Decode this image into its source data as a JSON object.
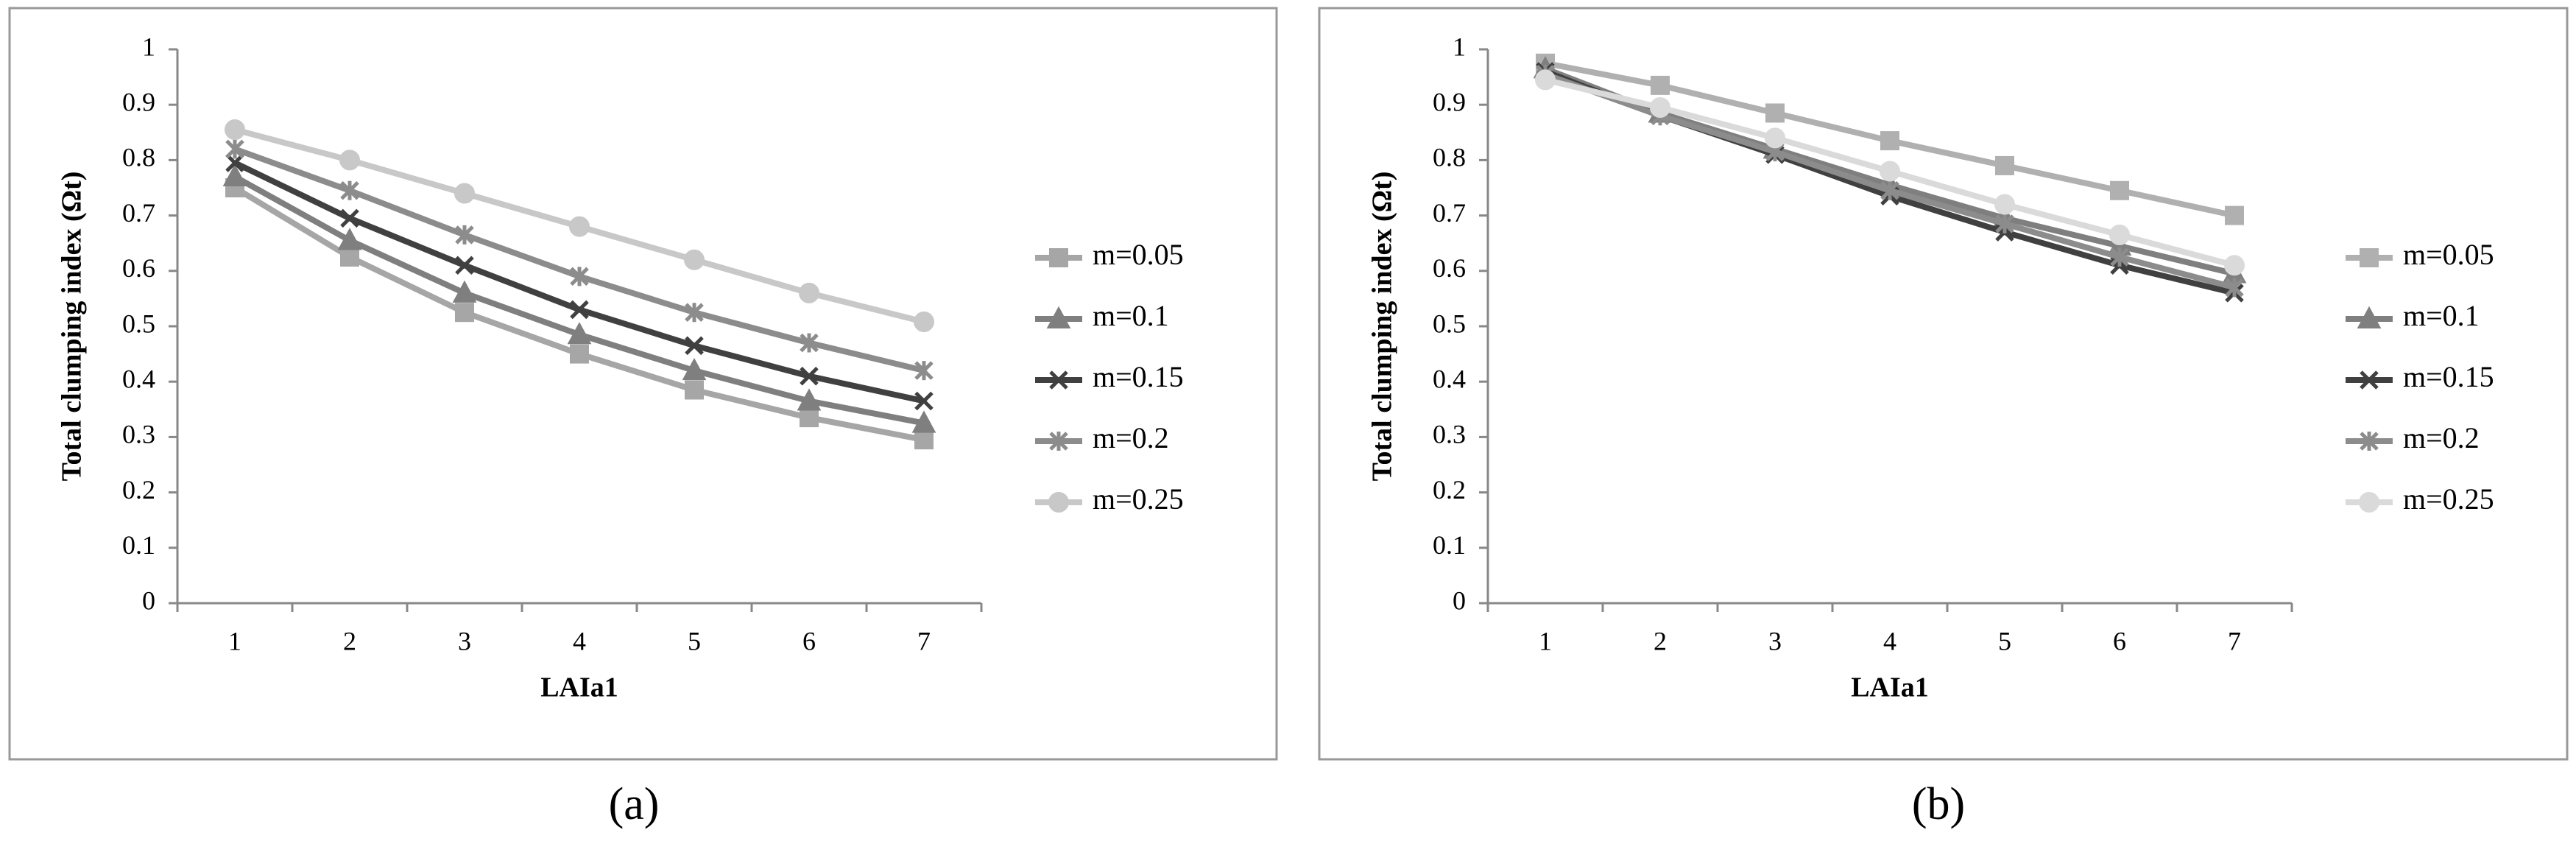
{
  "chart_data": [
    {
      "type": "line",
      "caption": "(a)",
      "y_label": "Total clumping index (Ωt)",
      "x_label": "LAIa1",
      "categories": [
        "1",
        "2",
        "3",
        "4",
        "5",
        "6",
        "7"
      ],
      "ylim": [
        0,
        1
      ],
      "yticks": [
        0,
        0.1,
        0.2,
        0.3,
        0.4,
        0.5,
        0.6,
        0.7,
        0.8,
        0.9,
        1
      ],
      "series": [
        {
          "name": "m=0.05",
          "color": "#a6a6a6",
          "marker": "square",
          "values": [
            0.75,
            0.625,
            0.525,
            0.45,
            0.385,
            0.335,
            0.295
          ]
        },
        {
          "name": "m=0.1",
          "color": "#7f7f7f",
          "marker": "triangle",
          "values": [
            0.77,
            0.655,
            0.56,
            0.485,
            0.42,
            0.365,
            0.325
          ]
        },
        {
          "name": "m=0.15",
          "color": "#404040",
          "marker": "cross",
          "values": [
            0.795,
            0.695,
            0.61,
            0.53,
            0.465,
            0.41,
            0.365
          ]
        },
        {
          "name": "m=0.2",
          "color": "#8c8c8c",
          "marker": "star",
          "values": [
            0.82,
            0.745,
            0.665,
            0.59,
            0.525,
            0.47,
            0.42
          ]
        },
        {
          "name": "m=0.25",
          "color": "#c8c8c8",
          "marker": "circle",
          "values": [
            0.855,
            0.8,
            0.74,
            0.68,
            0.62,
            0.56,
            0.508
          ]
        }
      ]
    },
    {
      "type": "line",
      "caption": "(b)",
      "y_label": "Total clumping index (Ωt)",
      "x_label": "LAIa1",
      "categories": [
        "1",
        "2",
        "3",
        "4",
        "5",
        "6",
        "7"
      ],
      "ylim": [
        0,
        1
      ],
      "yticks": [
        0,
        0.1,
        0.2,
        0.3,
        0.4,
        0.5,
        0.6,
        0.7,
        0.8,
        0.9,
        1
      ],
      "series": [
        {
          "name": "m=0.05",
          "color": "#b0b0b0",
          "marker": "square",
          "values": [
            0.975,
            0.935,
            0.885,
            0.835,
            0.79,
            0.745,
            0.7
          ]
        },
        {
          "name": "m=0.1",
          "color": "#7f7f7f",
          "marker": "triangle",
          "values": [
            0.965,
            0.885,
            0.82,
            0.755,
            0.695,
            0.645,
            0.595
          ]
        },
        {
          "name": "m=0.15",
          "color": "#404040",
          "marker": "cross",
          "values": [
            0.96,
            0.88,
            0.81,
            0.735,
            0.67,
            0.61,
            0.56
          ]
        },
        {
          "name": "m=0.2",
          "color": "#8c8c8c",
          "marker": "star",
          "values": [
            0.955,
            0.88,
            0.815,
            0.745,
            0.685,
            0.625,
            0.57
          ]
        },
        {
          "name": "m=0.25",
          "color": "#dadada",
          "marker": "circle",
          "values": [
            0.945,
            0.895,
            0.84,
            0.78,
            0.72,
            0.665,
            0.61
          ]
        }
      ]
    }
  ]
}
